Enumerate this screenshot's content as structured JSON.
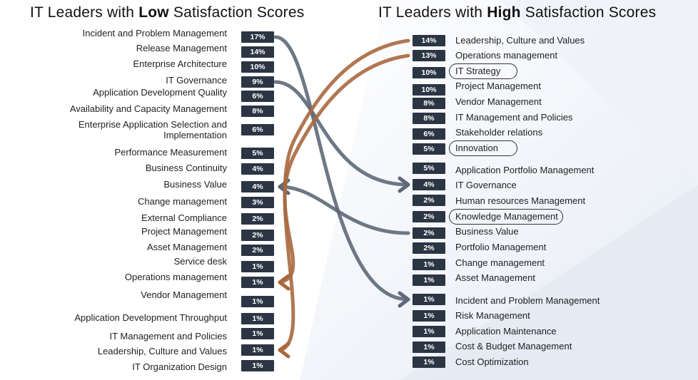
{
  "left": {
    "title_prefix": "IT Leaders with ",
    "title_bold": "Low",
    "title_suffix": " Satisfaction Scores",
    "items": [
      {
        "label": "Incident and Problem Management",
        "value": "17%"
      },
      {
        "label": "Release Management",
        "value": "14%"
      },
      {
        "label": "Enterprise Architecture",
        "value": "10%"
      },
      {
        "label": "IT Governance",
        "value": "9%"
      },
      {
        "label": "Application Development Quality",
        "value": "6%"
      },
      {
        "label": "Availability and Capacity Management",
        "value": "8%"
      },
      {
        "label": "Enterprise Application Selection and Implementation",
        "value": "6%"
      },
      {
        "label": "Performance Measurement",
        "value": "5%"
      },
      {
        "label": "Business Continuity",
        "value": "4%"
      },
      {
        "label": "Business Value",
        "value": "4%"
      },
      {
        "label": "Change management",
        "value": "3%"
      },
      {
        "label": "External Compliance",
        "value": "2%"
      },
      {
        "label": "Project Management",
        "value": "2%"
      },
      {
        "label": "Asset Management",
        "value": "2%"
      },
      {
        "label": "Service desk",
        "value": "1%"
      },
      {
        "label": "Operations management",
        "value": "1%"
      },
      {
        "label": "Vendor Management",
        "value": "1%"
      },
      {
        "label": "Application Development Throughput",
        "value": "1%"
      },
      {
        "label": "IT Management and Policies",
        "value": "1%"
      },
      {
        "label": "Leadership, Culture and Values",
        "value": "1%"
      },
      {
        "label": "IT Organization Design",
        "value": "1%"
      }
    ]
  },
  "right": {
    "title_prefix": "IT Leaders with ",
    "title_bold": "High",
    "title_suffix": " Satisfaction Scores",
    "items": [
      {
        "label": "Leadership, Culture and Values",
        "value": "14%",
        "circled": false
      },
      {
        "label": "Operations management",
        "value": "13%",
        "circled": false
      },
      {
        "label": "IT Strategy",
        "value": "10%",
        "circled": true
      },
      {
        "label": "Project Management",
        "value": "10%",
        "circled": false
      },
      {
        "label": "Vendor Management",
        "value": "8%",
        "circled": false
      },
      {
        "label": "IT Management and Policies",
        "value": "8%",
        "circled": false
      },
      {
        "label": "Stakeholder relations",
        "value": "6%",
        "circled": false
      },
      {
        "label": "Innovation",
        "value": "5%",
        "circled": true
      },
      {
        "label": "Application Portfolio Management",
        "value": "5%",
        "circled": false
      },
      {
        "label": "IT Governance",
        "value": "4%",
        "circled": false
      },
      {
        "label": "Human resources Management",
        "value": "2%",
        "circled": false
      },
      {
        "label": "Knowledge Management",
        "value": "2%",
        "circled": true
      },
      {
        "label": "Business Value",
        "value": "2%",
        "circled": false
      },
      {
        "label": "Portfolio Management",
        "value": "2%",
        "circled": false
      },
      {
        "label": "Change management",
        "value": "1%",
        "circled": false
      },
      {
        "label": "Asset Management",
        "value": "1%",
        "circled": false
      },
      {
        "label": "Incident and Problem Management",
        "value": "1%",
        "circled": false
      },
      {
        "label": "Risk Management",
        "value": "1%",
        "circled": false
      },
      {
        "label": "Application Maintenance",
        "value": "1%",
        "circled": false
      },
      {
        "label": "Cost & Budget Management",
        "value": "1%",
        "circled": false
      },
      {
        "label": "Cost Optimization",
        "value": "1%",
        "circled": false
      }
    ]
  },
  "links": [
    {
      "from": "left.Incident and Problem Management",
      "to": "right.Incident and Problem Management",
      "color": "#5e6878"
    },
    {
      "from": "left.IT Governance",
      "to": "right.IT Governance",
      "color": "#5e6878"
    },
    {
      "from": "right.Business Value",
      "to": "left.Business Value",
      "color": "#5e6878"
    },
    {
      "from": "right.Leadership, Culture and Values",
      "to": "left.Leadership, Culture and Values",
      "color": "#a8683f"
    },
    {
      "from": "right.Operations management",
      "to": "left.Operations management",
      "color": "#a8683f"
    }
  ],
  "colors": {
    "badge": "#2b3544",
    "link_gray": "#5e6878",
    "link_brown": "#a8683f"
  }
}
